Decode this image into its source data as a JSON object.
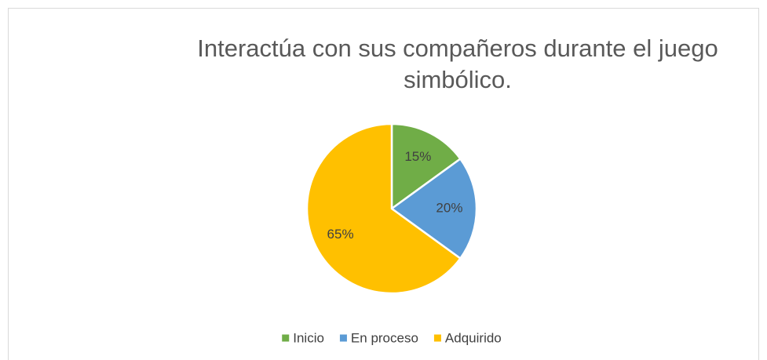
{
  "chart_data": {
    "type": "pie",
    "title": "Interactúa con sus compañeros durante el juego simbólico.",
    "categories": [
      "Inicio",
      "En proceso",
      "Adquirido"
    ],
    "values": [
      15,
      20,
      65
    ],
    "value_labels": [
      "15%",
      "20%",
      "65%"
    ],
    "colors": [
      "#70ad47",
      "#5b9bd5",
      "#ffc000"
    ],
    "legend": "bottom"
  }
}
